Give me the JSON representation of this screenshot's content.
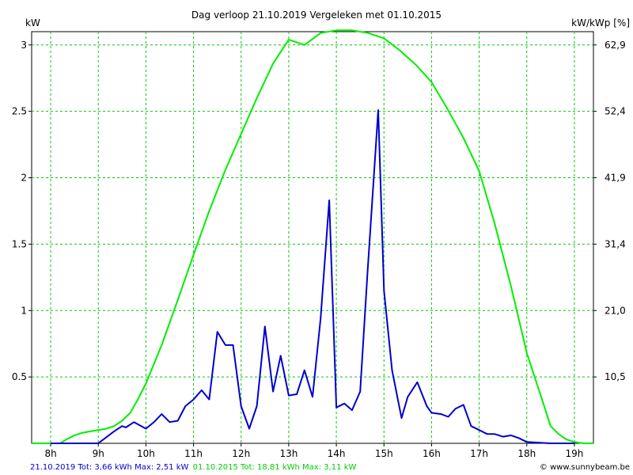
{
  "chart_data": {
    "type": "line",
    "title": "Dag  verloop 21.10.2019   Vergeleken met 01.10.2015",
    "ylabel_left": "kW",
    "ylabel_right": "kW/kWp [%]",
    "x_ticks": [
      "8h",
      "9h",
      "10h",
      "11h",
      "12h",
      "13h",
      "14h",
      "15h",
      "16h",
      "17h",
      "18h",
      "19h"
    ],
    "y_ticks_left": [
      "0.5",
      "1",
      "1.5",
      "2",
      "2.5",
      "3"
    ],
    "y_ticks_right": [
      "10,5",
      "21,0",
      "31,4",
      "41,9",
      "52,4",
      "62,9"
    ],
    "xlim": [
      7.6,
      19.4
    ],
    "ylim": [
      0,
      3.1
    ],
    "grid": true,
    "series": [
      {
        "name": "21.10.2019",
        "color": "#0000cc",
        "x": [
          8.0,
          9.0,
          9.33,
          9.5,
          9.58,
          9.75,
          10.0,
          10.17,
          10.33,
          10.5,
          10.67,
          10.83,
          11.0,
          11.17,
          11.33,
          11.5,
          11.67,
          11.83,
          12.0,
          12.17,
          12.33,
          12.5,
          12.67,
          12.83,
          13.0,
          13.17,
          13.33,
          13.5,
          13.67,
          13.85,
          14.0,
          14.17,
          14.33,
          14.5,
          14.65,
          14.88,
          15.0,
          15.17,
          15.37,
          15.5,
          15.7,
          15.9,
          16.0,
          16.2,
          16.35,
          16.5,
          16.67,
          16.83,
          17.0,
          17.17,
          17.33,
          17.5,
          17.67,
          17.83,
          18.0,
          18.5,
          19.0
        ],
        "y": [
          0,
          0,
          0.09,
          0.13,
          0.12,
          0.16,
          0.11,
          0.16,
          0.22,
          0.16,
          0.17,
          0.28,
          0.33,
          0.4,
          0.33,
          0.84,
          0.74,
          0.74,
          0.28,
          0.11,
          0.28,
          0.88,
          0.39,
          0.66,
          0.36,
          0.37,
          0.55,
          0.35,
          0.94,
          1.83,
          0.27,
          0.3,
          0.25,
          0.39,
          1.26,
          2.51,
          1.15,
          0.55,
          0.19,
          0.35,
          0.46,
          0.28,
          0.23,
          0.22,
          0.2,
          0.26,
          0.29,
          0.13,
          0.1,
          0.07,
          0.07,
          0.05,
          0.06,
          0.04,
          0.01,
          0,
          0
        ]
      },
      {
        "name": "01.10.2015",
        "color": "#00ee00",
        "x": [
          7.6,
          8.2,
          8.33,
          8.5,
          8.67,
          8.83,
          9.0,
          9.17,
          9.33,
          9.5,
          9.67,
          9.83,
          10.0,
          10.33,
          10.67,
          11.0,
          11.33,
          11.67,
          12.0,
          12.33,
          12.67,
          13.0,
          13.33,
          13.67,
          14.0,
          14.2,
          14.33,
          14.5,
          14.67,
          14.83,
          15.0,
          15.33,
          15.67,
          16.0,
          16.33,
          16.67,
          17.0,
          17.33,
          17.67,
          18.0,
          18.33,
          18.5,
          18.67,
          18.83,
          19.0,
          19.2,
          19.4
        ],
        "y": [
          0,
          0,
          0.03,
          0.06,
          0.08,
          0.09,
          0.1,
          0.11,
          0.13,
          0.17,
          0.23,
          0.33,
          0.45,
          0.74,
          1.08,
          1.42,
          1.75,
          2.06,
          2.33,
          2.6,
          2.86,
          3.04,
          3.0,
          3.09,
          3.11,
          3.11,
          3.11,
          3.1,
          3.09,
          3.07,
          3.05,
          2.96,
          2.85,
          2.72,
          2.52,
          2.3,
          2.05,
          1.65,
          1.18,
          0.68,
          0.32,
          0.13,
          0.07,
          0.03,
          0.01,
          0,
          0
        ]
      }
    ],
    "legend": [
      {
        "text": "21.10.2019 Tot: 3,66 kWh Max: 2,51 kW",
        "color": "#0000cc"
      },
      {
        "text": "01.10.2015 Tot: 18,81 kWh Max: 3,11 kW",
        "color": "#00cc00"
      }
    ]
  },
  "copyright": "© www.sunnybeam.be"
}
